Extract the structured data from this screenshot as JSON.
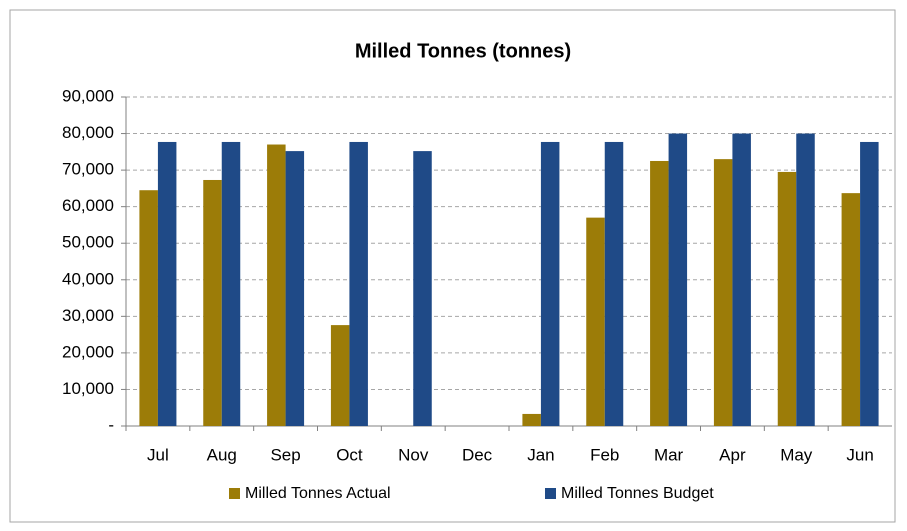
{
  "chart_data": {
    "type": "bar",
    "title": "Milled Tonnes (tonnes)",
    "categories": [
      "Jul",
      "Aug",
      "Sep",
      "Oct",
      "Nov",
      "Dec",
      "Jan",
      "Feb",
      "Mar",
      "Apr",
      "May",
      "Jun"
    ],
    "series": [
      {
        "name": "Milled Tonnes Actual",
        "color": "#9c7c08",
        "values": [
          64500,
          67300,
          77000,
          27600,
          0,
          0,
          3300,
          57000,
          72500,
          73000,
          69500,
          63700
        ]
      },
      {
        "name": "Milled Tonnes Budget",
        "color": "#1f4a87",
        "values": [
          77700,
          77700,
          75200,
          77700,
          75200,
          0,
          77700,
          77700,
          80000,
          80000,
          80000,
          77700
        ]
      }
    ],
    "ylim": [
      0,
      90000
    ],
    "yticks": [
      {
        "value": 0,
        "label": "-"
      },
      {
        "value": 10000,
        "label": "10,000"
      },
      {
        "value": 20000,
        "label": "20,000"
      },
      {
        "value": 30000,
        "label": "30,000"
      },
      {
        "value": 40000,
        "label": "40,000"
      },
      {
        "value": 50000,
        "label": "50,000"
      },
      {
        "value": 60000,
        "label": "60,000"
      },
      {
        "value": 70000,
        "label": "70,000"
      },
      {
        "value": 80000,
        "label": "80,000"
      },
      {
        "value": 90000,
        "label": "90,000"
      }
    ],
    "grid": true,
    "legend": "bottom"
  }
}
